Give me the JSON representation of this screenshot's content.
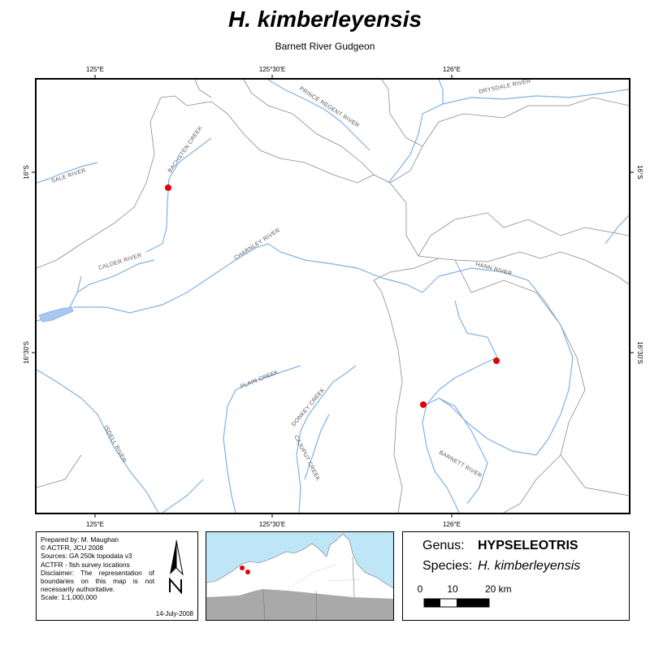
{
  "title": "H. kimberleyensis",
  "subtitle": "Barnett River Gudgeon",
  "axes": {
    "top": [
      "125°E",
      "125°30'E",
      "126°E"
    ],
    "bottom": [
      "125°E",
      "125°30'E",
      "126°E"
    ],
    "left": [
      "16°S",
      "16°30'S"
    ],
    "right": [
      "16°S",
      "16°30'S"
    ]
  },
  "rivers": {
    "prince_regent": "PRINCE REGENT RIVER",
    "drysdale": "DRYSDALE RIVER",
    "bachsten": "BACHSTEN CREEK",
    "sale": "SALE RIVER",
    "calder": "CALDER RIVER",
    "charnley": "CHARNLEY RIVER",
    "hann": "HANN RIVER",
    "plain": "PLAIN CREEK",
    "donkey": "DONKEY CREEK",
    "cajuput": "CAJUPUT CREEK",
    "isdell": "ISDELL RIVER",
    "barnett": "BARNETT RIVER"
  },
  "colors": {
    "river": "#7fb2e6",
    "boundary": "#8a8a8a",
    "site": "#e00000",
    "sea": "#bfe6f7",
    "land_grey": "#a9a9a9"
  },
  "survey_sites": 3,
  "credits": {
    "prepared": "Prepared by: M. Maughan",
    "copyright": "© ACTFR, JCU 2008",
    "sources": "Sources: GA 250k topodata v3",
    "sources2": "ACTFR - fish survey locations",
    "disclaimer": "Disclaimer: The representation of boundaries on this map is not necessarily authoritative.",
    "scale": "Scale: 1:1,000,000",
    "date": "14-July-2008"
  },
  "legend": {
    "genus_key": "Genus:",
    "genus_value": "HYPSELEOTRIS",
    "species_key": "Species:",
    "species_value": "H. kimberleyensis",
    "scale_labels": [
      "0",
      "10",
      "20 km"
    ]
  }
}
